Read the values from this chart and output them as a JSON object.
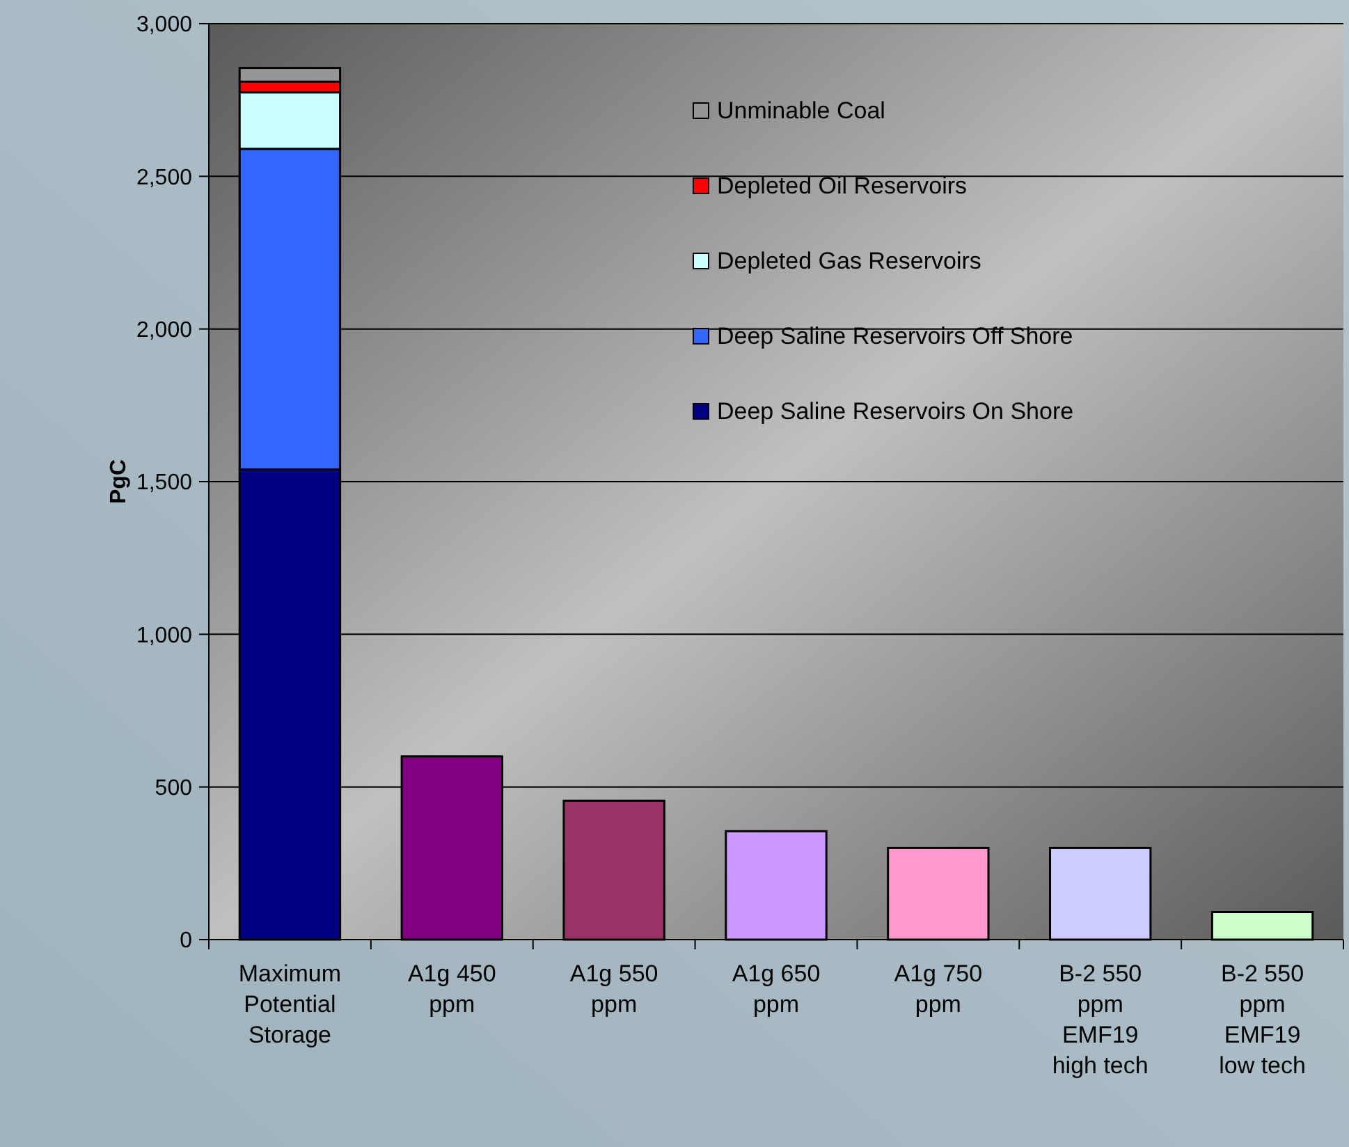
{
  "chart_data": {
    "type": "bar",
    "ylabel": "PgC",
    "stacked": true,
    "categories": [
      "Maximum Potential Storage",
      "A1g 450 ppm",
      "A1g 550 ppm",
      "A1g 650 ppm",
      "A1g 750 ppm",
      "B-2 550 ppm EMF19 high tech",
      "B-2 550 ppm EMF19 low tech"
    ],
    "series": [
      {
        "name": "Deep Saline Reservoirs On Shore",
        "color": "#000080",
        "values": [
          1540,
          null,
          null,
          null,
          null,
          null,
          null
        ]
      },
      {
        "name": "Deep Saline Reservoirs Off Shore",
        "color": "#3366ff",
        "values": [
          1050,
          null,
          null,
          null,
          null,
          null,
          null
        ]
      },
      {
        "name": "Depleted Gas Reservoirs",
        "color": "#ccffff",
        "values": [
          185,
          null,
          null,
          null,
          null,
          null,
          null
        ]
      },
      {
        "name": "Depleted Oil Reservoirs",
        "color": "#ff0000",
        "values": [
          35,
          null,
          null,
          null,
          null,
          null,
          null
        ]
      },
      {
        "name": "Unminable Coal",
        "color": "#969696",
        "values": [
          45,
          null,
          null,
          null,
          null,
          null,
          null
        ]
      },
      {
        "colors": [
          null,
          "#800080",
          "#993366",
          "#cc99ff",
          "#ff99cc",
          "#ccccff",
          "#ccffcc"
        ],
        "values": [
          null,
          600,
          455,
          355,
          300,
          300,
          90
        ]
      }
    ],
    "ylim": [
      0,
      3000
    ],
    "yticks": [
      {
        "value": 0,
        "label": "0"
      },
      {
        "value": 500,
        "label": "500"
      },
      {
        "value": 1000,
        "label": "1,000"
      },
      {
        "value": 1500,
        "label": "1,500"
      },
      {
        "value": 2000,
        "label": "2,000"
      },
      {
        "value": 2500,
        "label": "2,500"
      },
      {
        "value": 3000,
        "label": "3,000"
      }
    ],
    "grid": "y",
    "legend": "top right"
  }
}
